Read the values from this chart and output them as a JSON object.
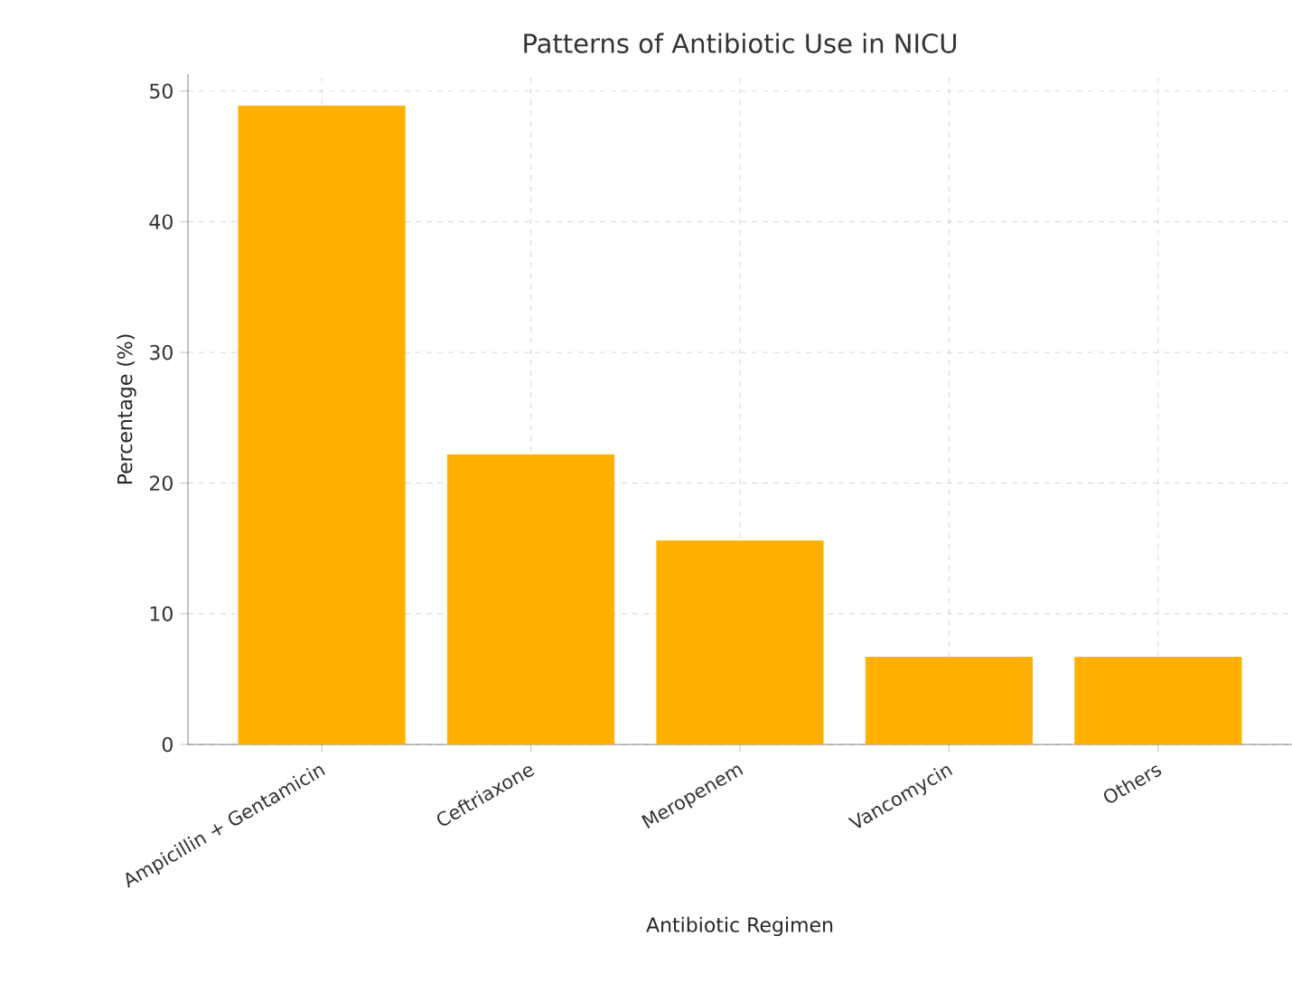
{
  "chart_data": {
    "type": "bar",
    "title": "Patterns of Antibiotic Use in NICU",
    "xlabel": "Antibiotic Regimen",
    "ylabel": "Percentage (%)",
    "categories": [
      "Ampicillin + Gentamicin",
      "Ceftriaxone",
      "Meropenem",
      "Vancomycin",
      "Others"
    ],
    "values": [
      48.9,
      22.2,
      15.6,
      6.7,
      6.7
    ],
    "color": "#ffb000",
    "ylim": [
      0,
      51.3
    ],
    "yticks": [
      0,
      10,
      20,
      30,
      40,
      50
    ],
    "grid": true
  }
}
